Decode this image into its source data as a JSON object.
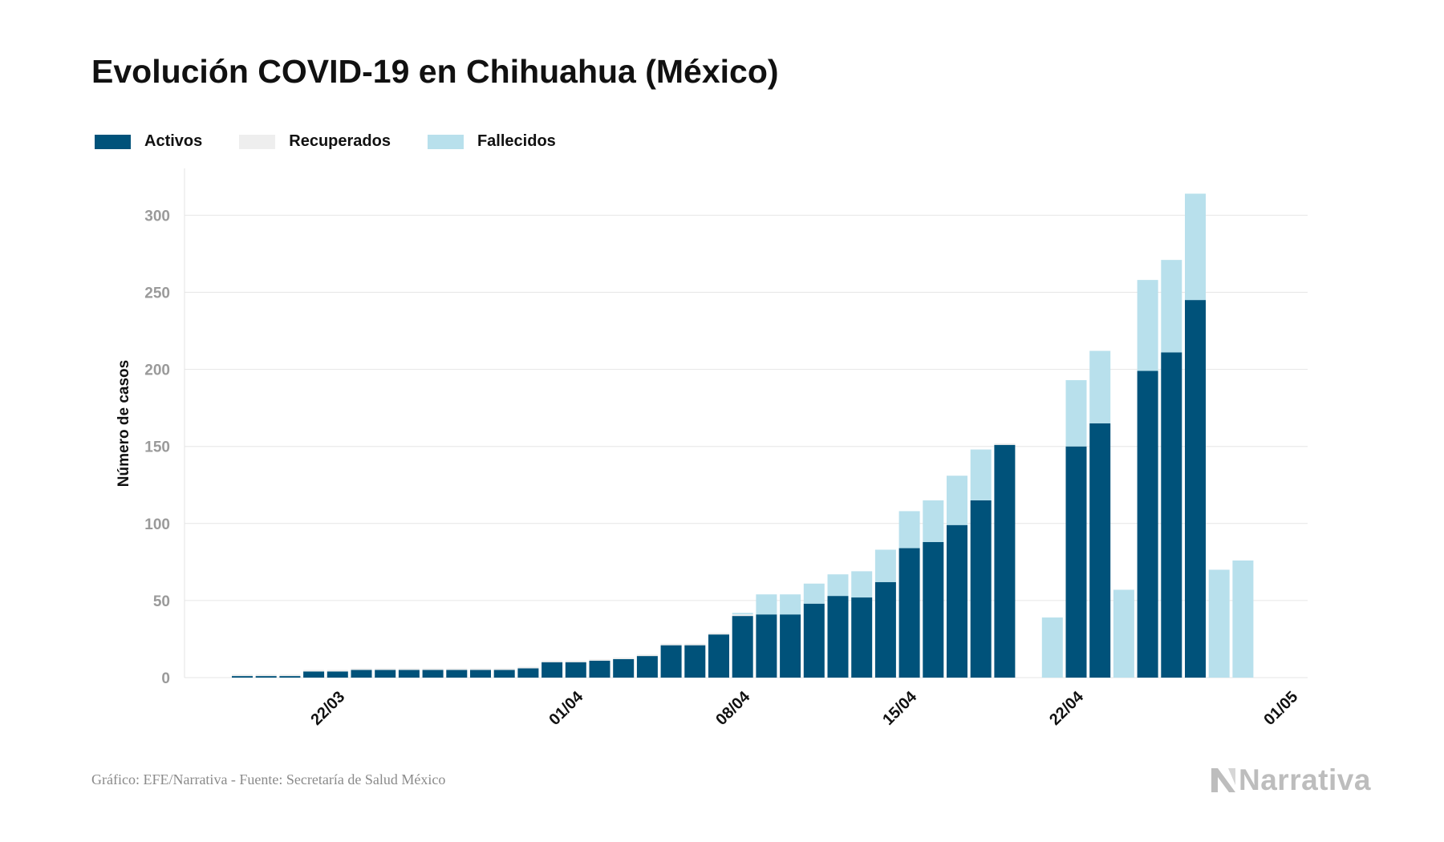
{
  "title": "Evolución COVID-19 en Chihuahua (México)",
  "source": "Gráfico: EFE/Narrativa - Fuente: Secretaría de Salud México",
  "brand": {
    "name": "Narrativa",
    "icon": "narrativa-logo-icon"
  },
  "colors": {
    "activos": "#00527a",
    "recuperados": "#eeeeee",
    "fallecidos": "#b8e0ec"
  },
  "chart_data": {
    "type": "bar",
    "stacked": true,
    "ylabel": "Número de casos",
    "xlabel": "",
    "ylim": [
      0,
      330
    ],
    "yticks": [
      0,
      50,
      100,
      150,
      200,
      250,
      300
    ],
    "xtick_labels": [
      "22/03",
      "01/04",
      "08/04",
      "15/04",
      "22/04",
      "01/05"
    ],
    "xtick_dates": [
      "2020-03-22",
      "2020-04-01",
      "2020-04-08",
      "2020-04-15",
      "2020-04-22",
      "2020-05-01"
    ],
    "grid": true,
    "legend_position": "top-left",
    "categories": [
      "2020-03-18",
      "2020-03-19",
      "2020-03-20",
      "2020-03-21",
      "2020-03-22",
      "2020-03-23",
      "2020-03-24",
      "2020-03-25",
      "2020-03-26",
      "2020-03-27",
      "2020-03-28",
      "2020-03-29",
      "2020-03-30",
      "2020-03-31",
      "2020-04-01",
      "2020-04-02",
      "2020-04-03",
      "2020-04-04",
      "2020-04-05",
      "2020-04-06",
      "2020-04-07",
      "2020-04-08",
      "2020-04-09",
      "2020-04-10",
      "2020-04-11",
      "2020-04-12",
      "2020-04-13",
      "2020-04-14",
      "2020-04-15",
      "2020-04-16",
      "2020-04-17",
      "2020-04-18",
      "2020-04-19",
      "2020-04-20",
      "2020-04-21",
      "2020-04-22",
      "2020-04-23",
      "2020-04-24",
      "2020-04-25",
      "2020-04-26",
      "2020-04-27",
      "2020-04-28",
      "2020-04-29",
      "2020-04-30"
    ],
    "series": [
      {
        "name": "Activos",
        "values": [
          1,
          1,
          1,
          4,
          4,
          5,
          5,
          5,
          5,
          5,
          5,
          5,
          6,
          10,
          10,
          11,
          12,
          14,
          21,
          21,
          28,
          40,
          41,
          41,
          48,
          53,
          52,
          62,
          84,
          88,
          99,
          115,
          151,
          0,
          0,
          150,
          165,
          0,
          199,
          211,
          245,
          0,
          0,
          0
        ]
      },
      {
        "name": "Recuperados",
        "values": [
          1,
          1,
          1,
          1,
          1,
          1,
          1,
          1,
          1,
          1,
          1,
          1,
          1,
          1,
          1,
          1,
          1,
          1,
          1,
          1,
          1,
          1,
          0,
          0,
          0,
          0,
          0,
          0,
          0,
          0,
          0,
          0,
          1,
          0,
          0,
          0,
          0,
          0,
          0,
          0,
          0,
          0,
          0,
          0
        ]
      },
      {
        "name": "Fallecidos",
        "values": [
          0,
          0,
          0,
          0,
          0,
          0,
          0,
          0,
          0,
          0,
          0,
          0,
          0,
          0,
          0,
          0,
          0,
          0,
          0,
          0,
          0,
          1,
          13,
          13,
          13,
          14,
          17,
          21,
          24,
          27,
          32,
          33,
          0,
          0,
          39,
          43,
          47,
          57,
          59,
          60,
          69,
          70,
          76,
          0
        ]
      }
    ]
  }
}
